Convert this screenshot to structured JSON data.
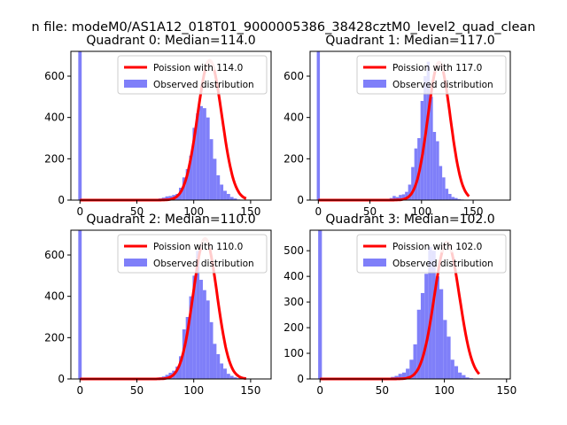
{
  "suptitle": "n file: modeM0/AS1A12_018T01_9000005386_38428cztM0_level2_quad_clean",
  "colors": {
    "hist": "#7f7ff9",
    "curve": "#ff0000",
    "curve_highlight": "#f4a3a3"
  },
  "chart_data": [
    {
      "type": "bar",
      "title": "Quadrant 0: Median=114.0",
      "xlim": [
        -8,
        168
      ],
      "ylim": [
        0,
        720
      ],
      "xticks": [
        0,
        50,
        100,
        150
      ],
      "yticks": [
        0,
        200,
        400,
        600
      ],
      "legend": {
        "placement": "top-right",
        "entries": [
          "Poission with 114.0",
          "Observed distribution"
        ]
      },
      "median": 114.0,
      "curve_peak": 676,
      "spike": {
        "x": 0,
        "width": 3,
        "value": 720
      },
      "bins": {
        "start": 60,
        "width": 3,
        "values": [
          3,
          5,
          5,
          8,
          12,
          18,
          20,
          25,
          30,
          60,
          110,
          150,
          215,
          350,
          420,
          455,
          445,
          400,
          295,
          200,
          120,
          75,
          45,
          30,
          15,
          8,
          3
        ]
      }
    },
    {
      "type": "bar",
      "title": "Quadrant 1: Median=117.0",
      "xlim": [
        -8,
        186
      ],
      "ylim": [
        0,
        720
      ],
      "xticks": [
        0,
        50,
        100,
        150
      ],
      "yticks": [
        0,
        200,
        400,
        600
      ],
      "legend": {
        "placement": "top-right",
        "entries": [
          "Poission with 117.0",
          "Observed distribution"
        ]
      },
      "median": 117.0,
      "curve_peak": 667,
      "spike": {
        "x": 0,
        "width": 3,
        "value": 720
      },
      "bins": {
        "start": 60,
        "width": 3,
        "values": [
          3,
          5,
          6,
          10,
          20,
          15,
          25,
          28,
          40,
          75,
          160,
          250,
          300,
          480,
          600,
          670,
          500,
          330,
          285,
          165,
          110,
          55,
          30,
          15,
          10,
          5,
          3
        ]
      }
    },
    {
      "type": "bar",
      "title": "Quadrant 2: Median=110.0",
      "xlim": [
        -8,
        168
      ],
      "ylim": [
        0,
        720
      ],
      "xticks": [
        0,
        50,
        100,
        150
      ],
      "yticks": [
        0,
        200,
        400,
        600
      ],
      "legend": {
        "placement": "top-right",
        "entries": [
          "Poission with 110.0",
          "Observed distribution"
        ]
      },
      "median": 110.0,
      "curve_peak": 679,
      "spike": {
        "x": 0,
        "width": 3,
        "value": 720
      },
      "bins": {
        "start": 60,
        "width": 3,
        "values": [
          3,
          4,
          6,
          8,
          12,
          20,
          30,
          40,
          60,
          110,
          240,
          300,
          400,
          500,
          620,
          480,
          430,
          380,
          275,
          170,
          120,
          75,
          50,
          25,
          15,
          8,
          4
        ]
      }
    },
    {
      "type": "bar",
      "title": "Quadrant 3: Median=102.0",
      "xlim": [
        -8,
        153
      ],
      "ylim": [
        0,
        580
      ],
      "xticks": [
        0,
        50,
        100,
        150
      ],
      "yticks": [
        0,
        100,
        200,
        300,
        400,
        500
      ],
      "legend": {
        "placement": "top-right",
        "entries": [
          "Poission with 102.0",
          "Observed distribution"
        ]
      },
      "median": 102.0,
      "curve_peak": 533,
      "spike": {
        "x": 0,
        "width": 3,
        "value": 580
      },
      "bins": {
        "start": 48,
        "width": 3,
        "values": [
          3,
          5,
          5,
          8,
          12,
          20,
          25,
          40,
          75,
          135,
          270,
          335,
          410,
          515,
          500,
          400,
          350,
          230,
          165,
          75,
          50,
          25,
          15,
          6,
          3
        ]
      }
    }
  ]
}
